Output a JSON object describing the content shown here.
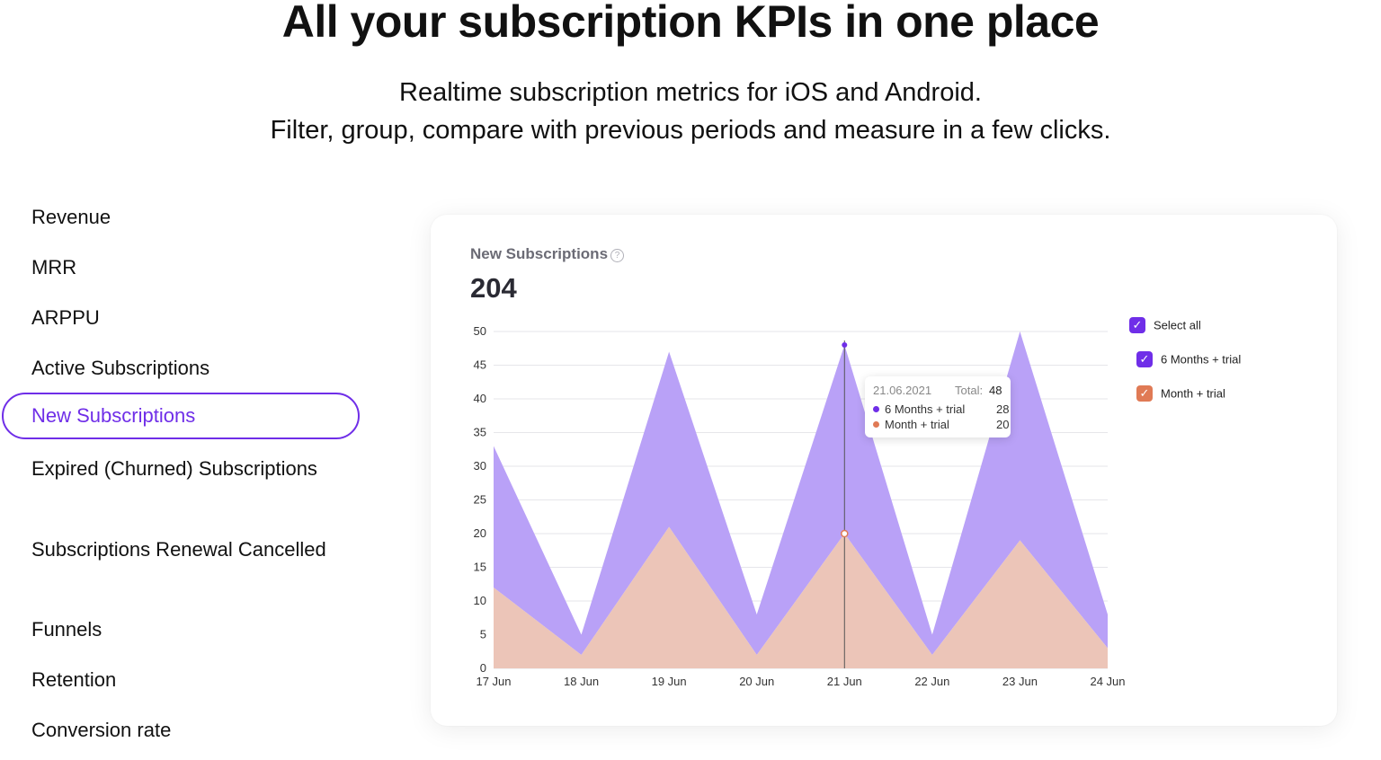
{
  "hero": {
    "title": "All your subscription KPIs in one place",
    "subtitle_line1": "Realtime subscription metrics for iOS and Android.",
    "subtitle_line2": "Filter, group, compare with previous periods and measure in a few clicks."
  },
  "nav": {
    "items": [
      {
        "label": "Revenue"
      },
      {
        "label": "MRR"
      },
      {
        "label": "ARPPU"
      },
      {
        "label": "Active Subscriptions"
      },
      {
        "label": "New Subscriptions",
        "active": true
      },
      {
        "label": "Expired (Churned) Subscriptions"
      },
      {
        "label": "Subscriptions Renewal Cancelled"
      },
      {
        "label": "Funnels"
      },
      {
        "label": "Retention"
      },
      {
        "label": "Conversion rate"
      }
    ]
  },
  "card": {
    "title": "New Subscriptions",
    "help_icon": "question-circle-icon",
    "total": "204"
  },
  "legend": {
    "select_all": "Select all",
    "items": [
      "6 Months + trial",
      "Month + trial"
    ]
  },
  "tooltip": {
    "date": "21.06.2021",
    "total_label": "Total:",
    "total_value": "48",
    "rows": [
      {
        "label": "6 Months + trial",
        "value": "28"
      },
      {
        "label": "Month + trial",
        "value": "20"
      }
    ]
  },
  "colors": {
    "accent": "#6f2ee8",
    "six_months_fill": "#b9a1f7",
    "month_fill": "#ecc5b8",
    "six_months_dot": "#6f2ee8",
    "month_dot": "#e07a55",
    "month_checkbox": "#e07a55"
  },
  "chart_data": {
    "type": "area",
    "stacked": true,
    "categories": [
      "17 Jun",
      "18 Jun",
      "19 Jun",
      "20 Jun",
      "21 Jun",
      "22 Jun",
      "23 Jun",
      "24 Jun"
    ],
    "series": [
      {
        "name": "Month + trial",
        "values": [
          12,
          2,
          21,
          2,
          20,
          2,
          19,
          3
        ]
      },
      {
        "name": "6 Months + trial",
        "values": [
          21,
          3,
          26,
          6,
          28,
          3,
          31,
          5
        ]
      }
    ],
    "totals": [
      33,
      5,
      47,
      8,
      48,
      5,
      50,
      8
    ],
    "ylim": [
      0,
      50
    ],
    "yticks": [
      0,
      5,
      10,
      15,
      20,
      25,
      30,
      35,
      40,
      45,
      50
    ],
    "grid": true,
    "legend_position": "right",
    "highlighted_category": "21 Jun"
  }
}
